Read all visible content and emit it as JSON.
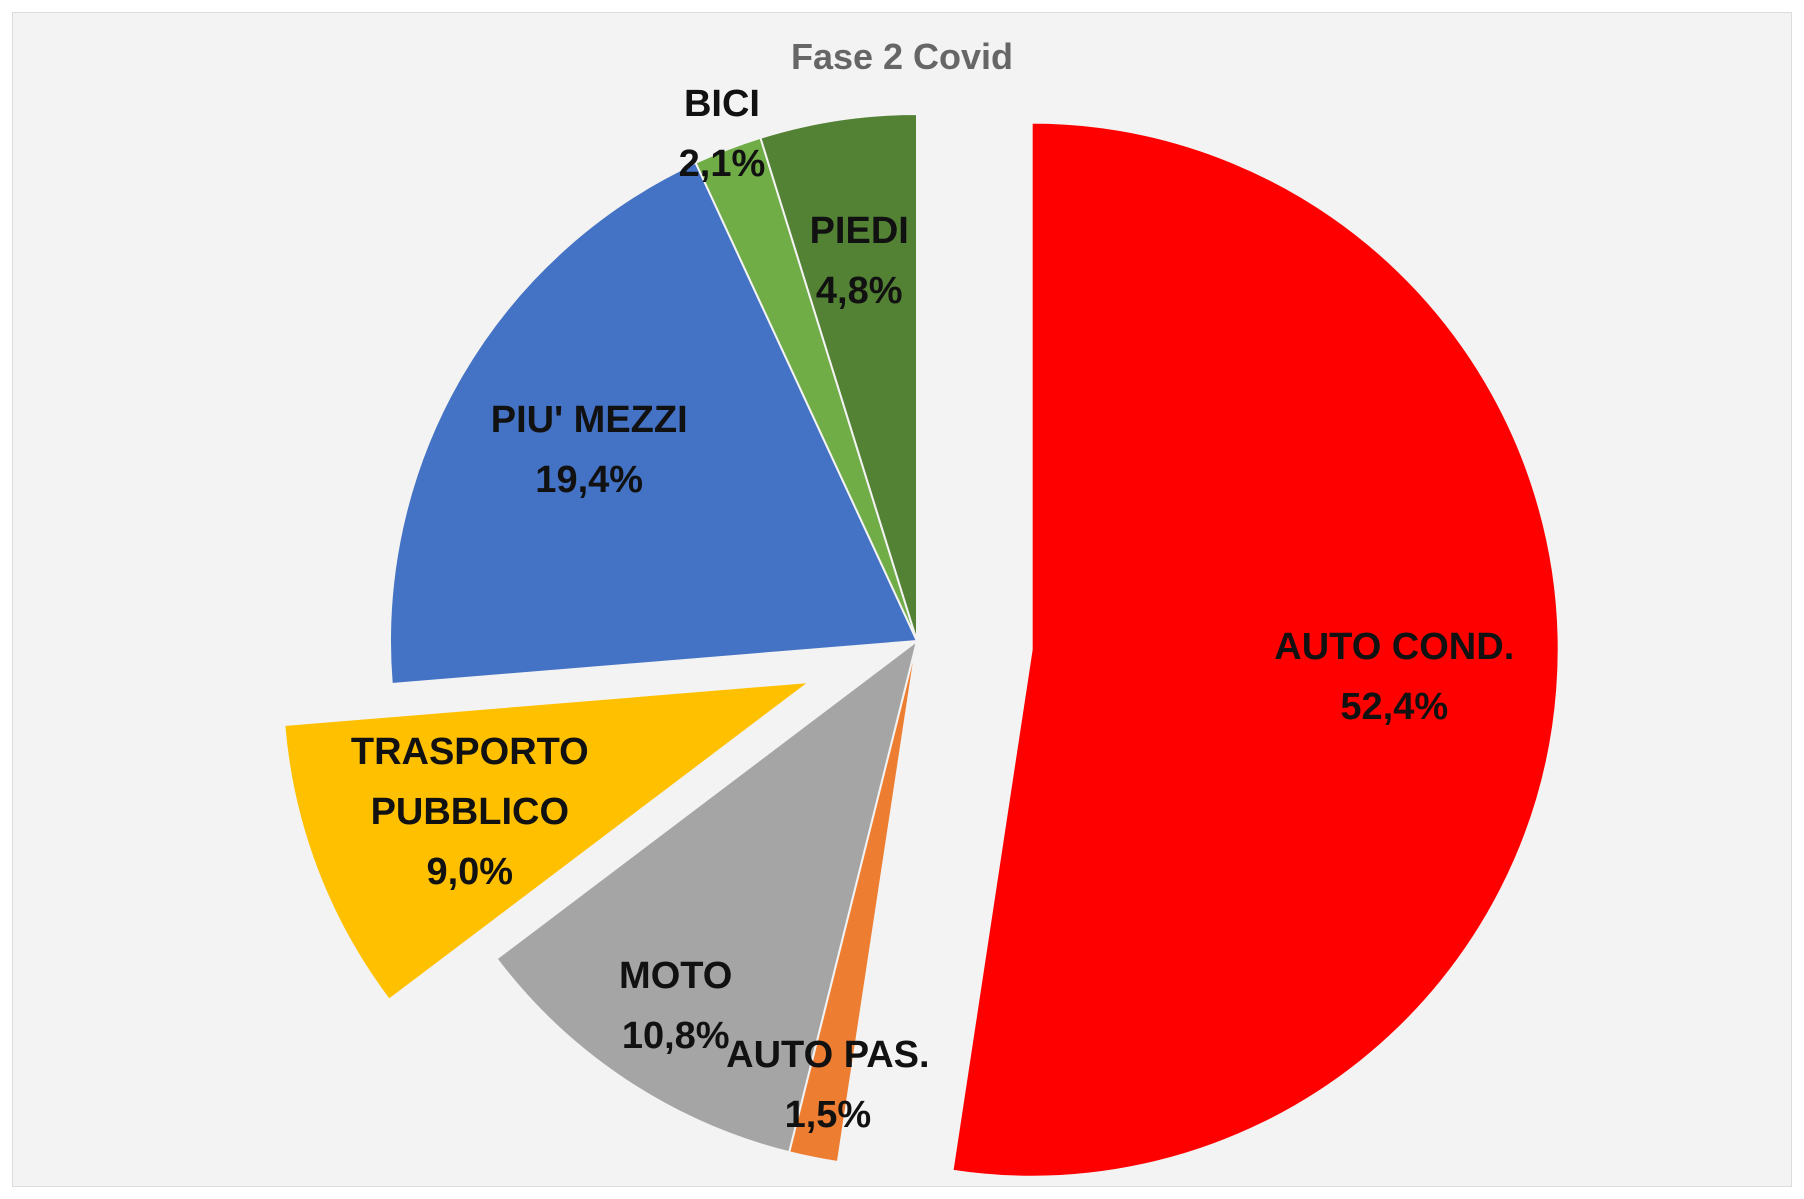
{
  "chart_data": {
    "type": "pie",
    "title": "Fase 2 Covid",
    "categories": [
      "AUTO COND.",
      "AUTO PAS.",
      "MOTO",
      "TRASPORTO PUBBLICO",
      "PIU' MEZZI",
      "BICI",
      "PIEDI"
    ],
    "values": [
      52.4,
      1.5,
      10.8,
      9.0,
      19.4,
      2.1,
      4.8
    ],
    "value_labels": [
      "52,4%",
      "1,5%",
      "10,8%",
      "9,0%",
      "19,4%",
      "2,1%",
      "4,8%"
    ],
    "colors": [
      "#ff0000",
      "#ed7d31",
      "#a5a5a5",
      "#ffc000",
      "#4472c4",
      "#70ad47",
      "#548235"
    ],
    "exploded": [
      true,
      false,
      false,
      true,
      false,
      false,
      false
    ]
  }
}
